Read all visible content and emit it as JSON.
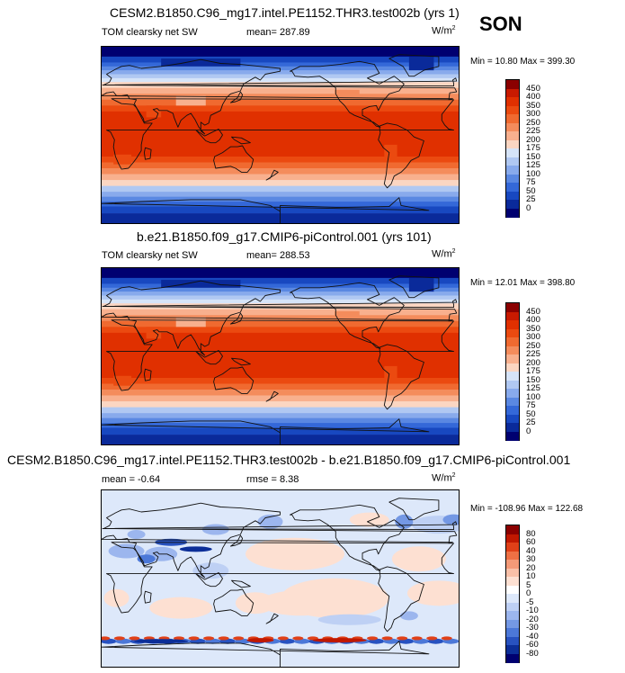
{
  "season": "SON",
  "panels": [
    {
      "title": "CESM2.B1850.C96_mg17.intel.PE1152.THR3.test002b (yrs 1)",
      "left_label": "TOM clearsky net SW",
      "stat_label": "mean= 287.89",
      "units_base": "W/m",
      "units_sup": "2",
      "minmax": "Min = 10.80 Max = 399.30",
      "colorbar_labels": [
        "450",
        "400",
        "350",
        "300",
        "250",
        "225",
        "200",
        "175",
        "150",
        "125",
        "100",
        "75",
        "50",
        "25",
        "0"
      ]
    },
    {
      "title": "b.e21.B1850.f09_g17.CMIP6-piControl.001 (yrs 101)",
      "left_label": "TOM clearsky net SW",
      "stat_label": "mean= 288.53",
      "units_base": "W/m",
      "units_sup": "2",
      "minmax": "Min = 12.01 Max = 398.80",
      "colorbar_labels": [
        "450",
        "400",
        "350",
        "300",
        "250",
        "225",
        "200",
        "175",
        "150",
        "125",
        "100",
        "75",
        "50",
        "25",
        "0"
      ]
    },
    {
      "title": "CESM2.B1850.C96_mg17.intel.PE1152.THR3.test002b - b.e21.B1850.f09_g17.CMIP6-piControl.001",
      "left_label": "mean = -0.64",
      "stat_label": "rmse = 8.38",
      "units_base": "W/m",
      "units_sup": "2",
      "minmax": "Min = -108.96 Max = 122.68",
      "colorbar_labels": [
        "80",
        "60",
        "40",
        "30",
        "20",
        "10",
        "5",
        "0",
        "-5",
        "-10",
        "-20",
        "-30",
        "-40",
        "-60",
        "-80"
      ]
    }
  ],
  "colors": {
    "abs_scale": [
      "#8b0000",
      "#c81a00",
      "#e03000",
      "#eb4a10",
      "#f06a30",
      "#f48c5c",
      "#f8b08e",
      "#fbd6c2",
      "#d6e4f8",
      "#b0c8f2",
      "#88aaec",
      "#5a88e2",
      "#3468d8",
      "#1848c0",
      "#0a2a9a",
      "#000070"
    ],
    "diff_scale": [
      "#8b0000",
      "#c01800",
      "#e04018",
      "#ee7044",
      "#f49a78",
      "#f9c0a8",
      "#fde0d2",
      "#ffffff",
      "#dde8fa",
      "#bed0f4",
      "#9cb6ee",
      "#7498e4",
      "#4c78d8",
      "#2852c0",
      "#0c2e98",
      "#000070"
    ]
  },
  "chart_data": [
    {
      "type": "heatmap",
      "title": "CESM2.B1850.C96_mg17.intel.PE1152.THR3.test002b (yrs 1)",
      "variable": "TOM clearsky net SW",
      "units": "W/m2",
      "mean": 287.89,
      "min": 10.8,
      "max": 399.3,
      "contour_levels": [
        0,
        25,
        50,
        75,
        100,
        125,
        150,
        175,
        200,
        225,
        250,
        300,
        350,
        400,
        450
      ],
      "projection": "cylindrical equidistant, global, Pacific-centred",
      "pattern": "maximum (~350-400) over tropics and subtropics, decreasing poleward to minimum over polar regions"
    },
    {
      "type": "heatmap",
      "title": "b.e21.B1850.f09_g17.CMIP6-piControl.001 (yrs 101)",
      "variable": "TOM clearsky net SW",
      "units": "W/m2",
      "mean": 288.53,
      "min": 12.01,
      "max": 398.8,
      "contour_levels": [
        0,
        25,
        50,
        75,
        100,
        125,
        150,
        175,
        200,
        225,
        250,
        300,
        350,
        400,
        450
      ],
      "projection": "cylindrical equidistant, global, Pacific-centred",
      "pattern": "maximum (~350-400) over tropics and subtropics, decreasing poleward to minimum over polar regions"
    },
    {
      "type": "heatmap",
      "title": "CESM2.B1850.C96_mg17.intel.PE1152.THR3.test002b - b.e21.B1850.f09_g17.CMIP6-piControl.001",
      "variable": "difference",
      "units": "W/m2",
      "mean": -0.64,
      "rmse": 8.38,
      "min": -108.96,
      "max": 122.68,
      "contour_levels": [
        -80,
        -60,
        -40,
        -30,
        -20,
        -10,
        -5,
        0,
        5,
        10,
        20,
        30,
        40,
        60,
        80
      ],
      "projection": "cylindrical equidistant, global, Pacific-centred",
      "pattern": "mostly small differences; strong alternating positive/negative band along the Antarctic sea-ice edge (~60-65S); negative patches over northern high latitudes"
    }
  ]
}
